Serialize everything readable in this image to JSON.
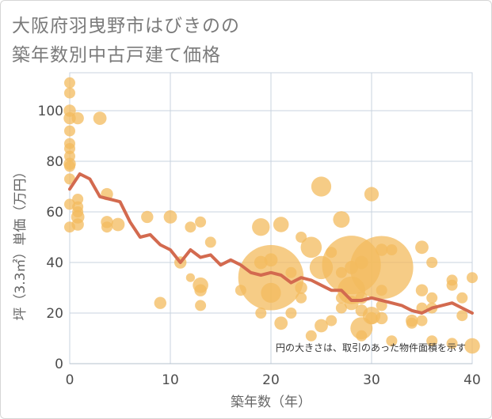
{
  "chart_data": {
    "type": "scatter",
    "title": "大阪府羽曳野市はびきのの\n築年数別中古戸建て価格",
    "xlabel": "築年数（年）",
    "ylabel": "坪（3.3㎡）単価（万円）",
    "note": "円の大きさは、取引のあった物件面積を示す",
    "xlim": [
      0,
      40
    ],
    "ylim": [
      0,
      115
    ],
    "x_ticks": [
      "0",
      "10",
      "20",
      "30",
      "40"
    ],
    "y_ticks": [
      "0",
      "20",
      "40",
      "60",
      "80",
      "100"
    ],
    "grid": true,
    "bubble_color": "#f3bb5e",
    "line_color": "#d36a4f",
    "series": [
      {
        "kind": "average_line",
        "x": [
          0,
          1,
          2,
          3,
          4,
          5,
          6,
          7,
          8,
          9,
          10,
          11,
          12,
          13,
          14,
          15,
          16,
          17,
          18,
          19,
          20,
          21,
          22,
          23,
          24,
          25,
          26,
          27,
          28,
          29,
          30,
          31,
          32,
          33,
          34,
          35,
          36,
          37,
          38,
          39,
          40
        ],
        "y": [
          69,
          75,
          73,
          66,
          65,
          64,
          56,
          50,
          51,
          47,
          45,
          40,
          45,
          42,
          43,
          39,
          41,
          39,
          36,
          35,
          36,
          35,
          32,
          34,
          33,
          31,
          29,
          29,
          25,
          25,
          26,
          25,
          24,
          23,
          21,
          20,
          22,
          23,
          24,
          22,
          20
        ]
      },
      {
        "kind": "bubbles",
        "points": [
          {
            "x": 0,
            "y": 111,
            "s": 1
          },
          {
            "x": 0,
            "y": 107,
            "s": 1
          },
          {
            "x": 0,
            "y": 100,
            "s": 1.1
          },
          {
            "x": 0,
            "y": 97,
            "s": 1.1
          },
          {
            "x": 0,
            "y": 92,
            "s": 1
          },
          {
            "x": 0,
            "y": 87,
            "s": 1
          },
          {
            "x": 0,
            "y": 85,
            "s": 1
          },
          {
            "x": 0,
            "y": 82,
            "s": 1
          },
          {
            "x": 0,
            "y": 79,
            "s": 1.1
          },
          {
            "x": 0,
            "y": 78,
            "s": 1
          },
          {
            "x": 0,
            "y": 73,
            "s": 1
          },
          {
            "x": 0,
            "y": 63,
            "s": 1
          },
          {
            "x": 0,
            "y": 54,
            "s": 1
          },
          {
            "x": 0.8,
            "y": 97,
            "s": 1.1
          },
          {
            "x": 0.8,
            "y": 65,
            "s": 1
          },
          {
            "x": 0.8,
            "y": 62,
            "s": 1
          },
          {
            "x": 0.8,
            "y": 60,
            "s": 1
          },
          {
            "x": 0.8,
            "y": 58,
            "s": 1.2
          },
          {
            "x": 0.8,
            "y": 55,
            "s": 1.1
          },
          {
            "x": 3,
            "y": 97,
            "s": 1.2
          },
          {
            "x": 3.7,
            "y": 67,
            "s": 1.1
          },
          {
            "x": 3.7,
            "y": 56,
            "s": 1.1
          },
          {
            "x": 3.7,
            "y": 54,
            "s": 1
          },
          {
            "x": 4.8,
            "y": 55,
            "s": 1.2
          },
          {
            "x": 7.7,
            "y": 58,
            "s": 1.1
          },
          {
            "x": 9,
            "y": 24,
            "s": 1.1
          },
          {
            "x": 10,
            "y": 58,
            "s": 1.2
          },
          {
            "x": 11,
            "y": 40,
            "s": 1.1
          },
          {
            "x": 12,
            "y": 54,
            "s": 1
          },
          {
            "x": 12,
            "y": 34,
            "s": 0.8
          },
          {
            "x": 13,
            "y": 56,
            "s": 1
          },
          {
            "x": 13,
            "y": 31,
            "s": 1.4
          },
          {
            "x": 13,
            "y": 29,
            "s": 1.1
          },
          {
            "x": 13,
            "y": 23,
            "s": 1
          },
          {
            "x": 14,
            "y": 48,
            "s": 1
          },
          {
            "x": 17,
            "y": 29,
            "s": 1
          },
          {
            "x": 19,
            "y": 54,
            "s": 1.6
          },
          {
            "x": 19,
            "y": 40,
            "s": 1.2
          },
          {
            "x": 19,
            "y": 20,
            "s": 1
          },
          {
            "x": 20,
            "y": 34,
            "s": 5.9
          },
          {
            "x": 20,
            "y": 28,
            "s": 1.8
          },
          {
            "x": 20,
            "y": 41,
            "s": 1.2
          },
          {
            "x": 21,
            "y": 55,
            "s": 1.4
          },
          {
            "x": 21,
            "y": 16,
            "s": 1.2
          },
          {
            "x": 22,
            "y": 36,
            "s": 1
          },
          {
            "x": 22,
            "y": 20,
            "s": 1
          },
          {
            "x": 23,
            "y": 26,
            "s": 1
          },
          {
            "x": 23,
            "y": 50,
            "s": 1
          },
          {
            "x": 23,
            "y": 30,
            "s": 1.1
          },
          {
            "x": 24,
            "y": 46,
            "s": 1.9
          },
          {
            "x": 24,
            "y": 11,
            "s": 1
          },
          {
            "x": 25,
            "y": 70,
            "s": 1.8
          },
          {
            "x": 25,
            "y": 38,
            "s": 2.1
          },
          {
            "x": 25,
            "y": 15,
            "s": 1.2
          },
          {
            "x": 26,
            "y": 44,
            "s": 1
          },
          {
            "x": 26,
            "y": 17,
            "s": 1
          },
          {
            "x": 27,
            "y": 57,
            "s": 1.5
          },
          {
            "x": 27,
            "y": 36,
            "s": 1
          },
          {
            "x": 27,
            "y": 22,
            "s": 1
          },
          {
            "x": 27,
            "y": 26,
            "s": 1
          },
          {
            "x": 28,
            "y": 39,
            "s": 5.3
          },
          {
            "x": 28,
            "y": 29,
            "s": 2.5
          },
          {
            "x": 28,
            "y": 24,
            "s": 1.3
          },
          {
            "x": 28,
            "y": 38,
            "s": 1.2
          },
          {
            "x": 29,
            "y": 40,
            "s": 1.2
          },
          {
            "x": 29,
            "y": 26,
            "s": 1.1
          },
          {
            "x": 29,
            "y": 21,
            "s": 1.1
          },
          {
            "x": 29,
            "y": 14,
            "s": 2
          },
          {
            "x": 29,
            "y": 11,
            "s": 1
          },
          {
            "x": 30,
            "y": 67,
            "s": 1.3
          },
          {
            "x": 30,
            "y": 19,
            "s": 1.6
          },
          {
            "x": 30,
            "y": 18,
            "s": 1.1
          },
          {
            "x": 31,
            "y": 38,
            "s": 5.7
          },
          {
            "x": 31,
            "y": 45,
            "s": 1.1
          },
          {
            "x": 31,
            "y": 29,
            "s": 1
          },
          {
            "x": 31,
            "y": 18,
            "s": 1.1
          },
          {
            "x": 31,
            "y": 23,
            "s": 1
          },
          {
            "x": 32,
            "y": 45,
            "s": 1
          },
          {
            "x": 32,
            "y": 9,
            "s": 1
          },
          {
            "x": 34,
            "y": 17,
            "s": 1.1
          },
          {
            "x": 34,
            "y": 16,
            "s": 1
          },
          {
            "x": 35,
            "y": 46,
            "s": 1.2
          },
          {
            "x": 35,
            "y": 29,
            "s": 1.1
          },
          {
            "x": 35,
            "y": 22,
            "s": 1
          },
          {
            "x": 35,
            "y": 17,
            "s": 1
          },
          {
            "x": 36,
            "y": 40,
            "s": 1
          },
          {
            "x": 36,
            "y": 26,
            "s": 1
          },
          {
            "x": 36,
            "y": 22,
            "s": 1
          },
          {
            "x": 36,
            "y": 9,
            "s": 1
          },
          {
            "x": 38,
            "y": 33,
            "s": 1
          },
          {
            "x": 38,
            "y": 31,
            "s": 1
          },
          {
            "x": 38,
            "y": 8,
            "s": 1
          },
          {
            "x": 39,
            "y": 26,
            "s": 1
          },
          {
            "x": 39,
            "y": 19,
            "s": 1
          },
          {
            "x": 40,
            "y": 34,
            "s": 1
          },
          {
            "x": 40,
            "y": 7,
            "s": 1.4
          }
        ]
      }
    ]
  }
}
